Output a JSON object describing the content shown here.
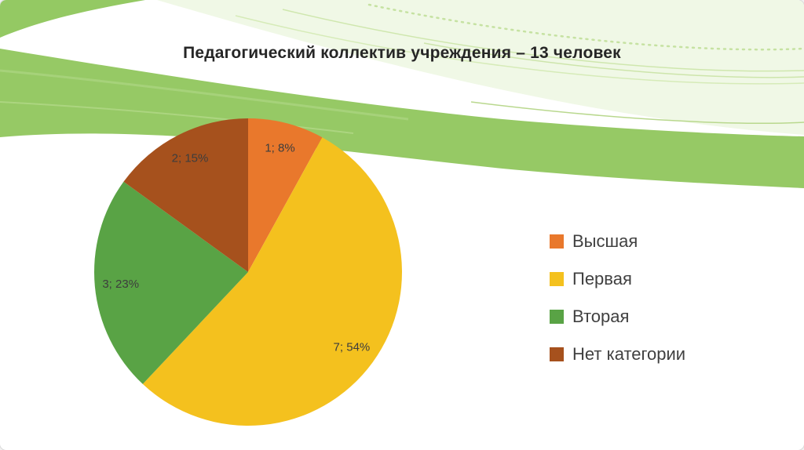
{
  "slide": {
    "title": "Педагогический коллектив учреждения – 13 человек"
  },
  "chart_data": {
    "type": "pie",
    "title": "Педагогический коллектив учреждения – 13 человек",
    "total_people": 13,
    "unit": "человек",
    "direction": "clockwise",
    "start_angle_deg": 0,
    "legend_position": "right",
    "slices": [
      {
        "label": "Высшая",
        "value": 1,
        "percent": 8,
        "data_label": "1; 8%",
        "color": "#E9782C"
      },
      {
        "label": "Первая",
        "value": 7,
        "percent": 54,
        "data_label": "7; 54%",
        "color": "#F4C11E"
      },
      {
        "label": "Вторая",
        "value": 3,
        "percent": 23,
        "data_label": "3; 23%",
        "color": "#59A345"
      },
      {
        "label": "Нет категории",
        "value": 2,
        "percent": 15,
        "data_label": "2; 15%",
        "color": "#A6511D"
      }
    ]
  },
  "colors": {
    "background": "#FFFFFF",
    "title_text": "#262626",
    "legend_text": "#404040",
    "data_label_text": "#3D3D3D",
    "wave_main_green": "#96C965",
    "wave_corner_green": "#94C963",
    "wave_pale_green": "#F0F8E6"
  }
}
